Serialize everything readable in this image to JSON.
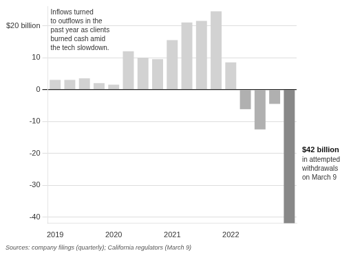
{
  "chart_data": {
    "type": "bar",
    "categories": [
      "2019",
      null,
      null,
      null,
      "2020",
      null,
      null,
      null,
      "2021",
      null,
      null,
      null,
      "2022",
      null,
      null,
      null,
      null
    ],
    "values": [
      3.0,
      3.0,
      3.5,
      2.0,
      1.5,
      12.0,
      10.0,
      9.5,
      15.5,
      21.0,
      21.5,
      24.5,
      8.5,
      -6.2,
      -12.5,
      -4.5,
      -42
    ],
    "colors": [
      "#d2d2d2",
      "#d2d2d2",
      "#d2d2d2",
      "#d2d2d2",
      "#d2d2d2",
      "#d2d2d2",
      "#d2d2d2",
      "#d2d2d2",
      "#d2d2d2",
      "#d2d2d2",
      "#d2d2d2",
      "#d2d2d2",
      "#d2d2d2",
      "#b0b0b0",
      "#b0b0b0",
      "#b0b0b0",
      "#888888"
    ],
    "ylim": [
      -42,
      26
    ],
    "yticks": [
      {
        "value": 20,
        "label": "$20 billion"
      },
      10,
      0,
      -10,
      -20,
      -30,
      -40
    ],
    "grid": true,
    "annotations": [
      "Inflows turned\nto outflows in the\npast year as clients\nburned cash amid\nthe tech slowdown.",
      "$42 billion",
      "in attempted\nwithdrawals\non March 9",
      "Sources: company filings (quarterly); California regulators (March 9)"
    ]
  }
}
